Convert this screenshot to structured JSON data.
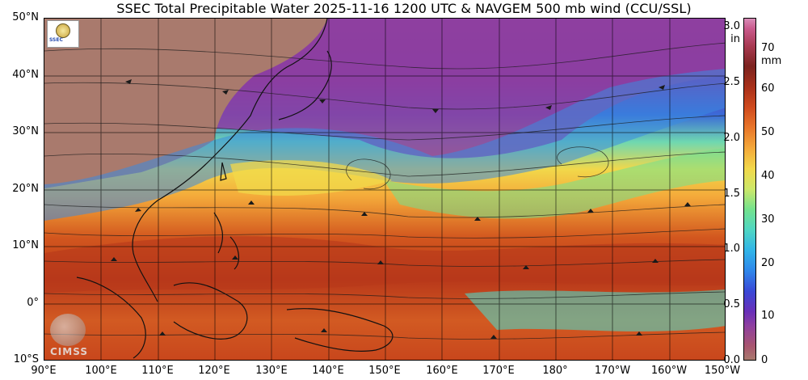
{
  "header": {
    "title": "SSEC Total Precipitable Water  2025-11-16 1200 UTC & NAVGEM 500 mb wind (CCU/SSL)"
  },
  "axes": {
    "lat_labels": [
      "50°N",
      "40°N",
      "30°N",
      "20°N",
      "10°N",
      "0°",
      "10°S"
    ],
    "lon_labels": [
      "90°E",
      "100°E",
      "110°E",
      "120°E",
      "130°E",
      "140°E",
      "150°E",
      "160°E",
      "170°E",
      "180°",
      "170°W",
      "160°W",
      "150°W"
    ]
  },
  "colorbar": {
    "inch_labels": [
      "3.0",
      "2.5",
      "2.0",
      "1.5",
      "1.0",
      "0.5",
      "0.0"
    ],
    "inch_unit": "in",
    "mm_labels": [
      "70",
      "60",
      "50",
      "40",
      "30",
      "20",
      "10",
      "0"
    ],
    "mm_unit": "mm"
  },
  "logos": {
    "ssec_text": "SSEC",
    "cimss_text": "CIMSS"
  },
  "colors": {
    "dry": "#8e3fa0",
    "moist": "#cf4a1e",
    "mid": "#f2d84a",
    "land": "#a97a6d"
  }
}
